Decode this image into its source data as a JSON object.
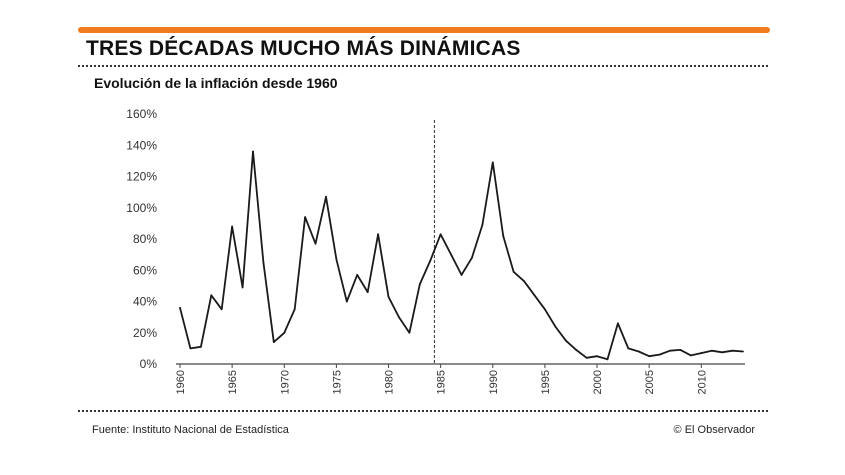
{
  "header": {
    "title": "TRES DÉCADAS MUCHO MÁS DINÁMICAS",
    "subtitle": "Evolución de la inflación desde 1960",
    "accent_color": "#f07c1f"
  },
  "footer": {
    "source": "Fuente: Instituto Nacional de Estadística",
    "credit": "© El Observador"
  },
  "chart_data": {
    "type": "line",
    "title": "Evolución de la inflación desde 1960",
    "xlabel": "",
    "ylabel": "",
    "xlim": [
      1960,
      2014
    ],
    "ylim": [
      0,
      160
    ],
    "yticks": [
      0,
      20,
      40,
      60,
      80,
      100,
      120,
      140,
      160
    ],
    "ytick_labels": [
      "0%",
      "20%",
      "40%",
      "60%",
      "80%",
      "100%",
      "120%",
      "140%",
      "160%"
    ],
    "xticks": [
      1960,
      1965,
      1970,
      1975,
      1980,
      1985,
      1990,
      1995,
      2000,
      2005,
      2010
    ],
    "xtick_labels": [
      "1960",
      "1965",
      "1970",
      "1975",
      "1980",
      "1985",
      "1990",
      "1995",
      "2000",
      "2005",
      "2010"
    ],
    "reference_line_year": 1984.4,
    "line_color": "#1a1a1a",
    "series": [
      {
        "name": "Inflación",
        "x": [
          1960,
          1961,
          1962,
          1963,
          1964,
          1965,
          1966,
          1967,
          1968,
          1969,
          1970,
          1971,
          1972,
          1973,
          1974,
          1975,
          1976,
          1977,
          1978,
          1979,
          1980,
          1981,
          1982,
          1983,
          1984,
          1985,
          1986,
          1987,
          1988,
          1989,
          1990,
          1991,
          1992,
          1993,
          1994,
          1995,
          1996,
          1997,
          1998,
          1999,
          2000,
          2001,
          2002,
          2003,
          2004,
          2005,
          2006,
          2007,
          2008,
          2009,
          2010,
          2011,
          2012,
          2013,
          2014
        ],
        "values": [
          36,
          10,
          11,
          44,
          35,
          88,
          49,
          136,
          65,
          14,
          20,
          35,
          94,
          77,
          107,
          67,
          40,
          57,
          46,
          83,
          43,
          30,
          20,
          51,
          66,
          83,
          70,
          57,
          68,
          89,
          129,
          82,
          59,
          53,
          44,
          35,
          24,
          15,
          9,
          4,
          5,
          3,
          26,
          10,
          8,
          5,
          6,
          8.5,
          9,
          5.5,
          7,
          8.5,
          7.5,
          8.5,
          8
        ]
      }
    ]
  }
}
